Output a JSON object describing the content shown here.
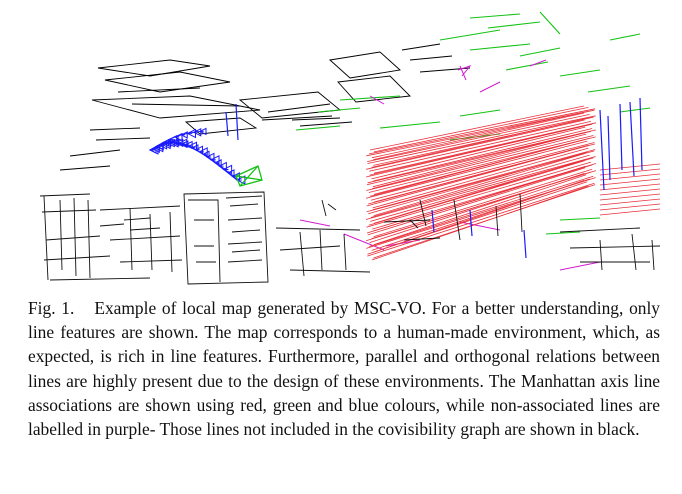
{
  "figure": {
    "label": "Fig. 1.",
    "caption": "Example of local map generated by MSC-VO. For a better understanding, only line features are shown. The map corresponds to a human-made environment, which, as expected, is rich in line features. Furthermore, parallel and orthogonal relations between lines are highly present due to the design of these environments. The Manhattan axis line associations are shown using red, green and blue colours, while non-associated lines are labelled in purple- Those lines not included in the covisibility graph are shown in black."
  },
  "colors": {
    "axis_x": "#e8303a",
    "axis_y": "#14c214",
    "axis_z": "#1a1aff",
    "non_associated": "#d21cd2",
    "not_in_covisibility": "#000000"
  }
}
